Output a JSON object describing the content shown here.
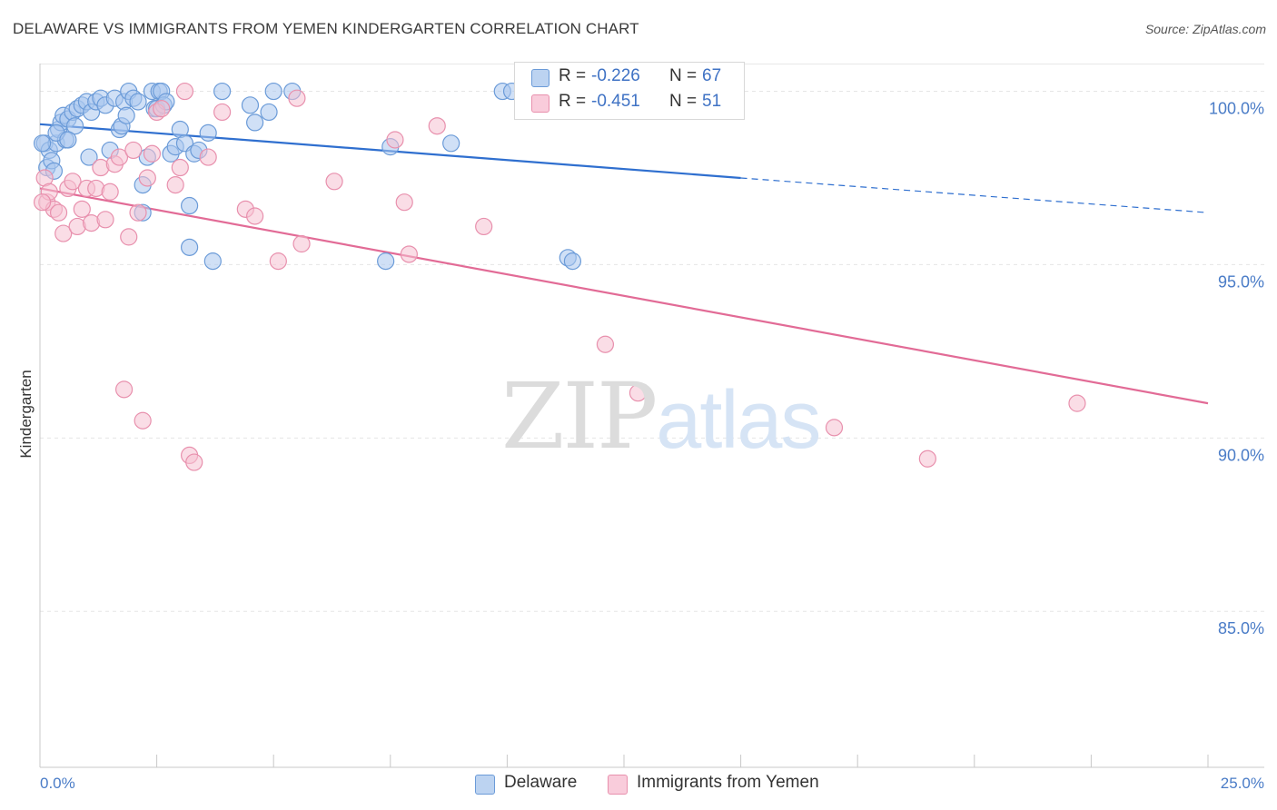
{
  "header": {
    "title": "DELAWARE VS IMMIGRANTS FROM YEMEN KINDERGARTEN CORRELATION CHART",
    "source": "Source: ZipAtlas.com"
  },
  "watermark": {
    "zip": "ZIP",
    "atlas": "atlas"
  },
  "legend_top": {
    "series1": {
      "r_label": "R =",
      "r_value": "-0.226",
      "n_label": "N =",
      "n_value": "67"
    },
    "series2": {
      "r_label": "R =",
      "r_value": "-0.451",
      "n_label": "N =",
      "n_value": "51"
    }
  },
  "legend_bottom": {
    "series1": "Delaware",
    "series2": "Immigrants from Yemen"
  },
  "colors": {
    "blue_fill": "#a9c7ee",
    "blue_stroke": "#6b9bd8",
    "blue_line": "#2f6fcf",
    "pink_fill": "#f6c1d1",
    "pink_stroke": "#e890ad",
    "pink_line": "#e26b96",
    "grid": "#e5e5e5",
    "axis_text": "#4a7cc7"
  },
  "chart_data": {
    "type": "scatter",
    "title": "DELAWARE VS IMMIGRANTS FROM YEMEN KINDERGARTEN CORRELATION CHART",
    "xlabel": "",
    "ylabel": "Kindergarten",
    "xlim": [
      0,
      25
    ],
    "ylim": [
      80.5,
      100.8
    ],
    "x_tick_labels": [
      "0.0%",
      "25.0%"
    ],
    "y_ticks": [
      100,
      95,
      90,
      85
    ],
    "y_tick_labels": [
      "100.0%",
      "95.0%",
      "90.0%",
      "85.0%"
    ],
    "series": [
      {
        "name": "Delaware",
        "color": "#6b9bd8",
        "r": -0.226,
        "n": 67,
        "trend": {
          "x0": 0,
          "y0": 99.05,
          "x1": 15.0,
          "y1": 97.5,
          "dash_to_x": 25.0,
          "dash_to_y": 96.5
        },
        "points": [
          [
            0.1,
            98.5
          ],
          [
            0.15,
            97.8
          ],
          [
            0.2,
            98.3
          ],
          [
            0.25,
            98.0
          ],
          [
            0.3,
            97.7
          ],
          [
            0.35,
            98.5
          ],
          [
            0.4,
            98.9
          ],
          [
            0.45,
            99.1
          ],
          [
            0.5,
            99.3
          ],
          [
            0.55,
            98.6
          ],
          [
            0.6,
            99.2
          ],
          [
            0.7,
            99.4
          ],
          [
            0.75,
            99.0
          ],
          [
            0.8,
            99.5
          ],
          [
            0.9,
            99.6
          ],
          [
            1.0,
            99.7
          ],
          [
            1.05,
            98.1
          ],
          [
            1.1,
            99.4
          ],
          [
            1.2,
            99.7
          ],
          [
            1.3,
            99.8
          ],
          [
            1.4,
            99.6
          ],
          [
            1.5,
            98.3
          ],
          [
            1.6,
            99.8
          ],
          [
            1.7,
            98.9
          ],
          [
            1.8,
            99.7
          ],
          [
            1.75,
            99.0
          ],
          [
            1.85,
            99.3
          ],
          [
            1.9,
            100.0
          ],
          [
            2.0,
            99.8
          ],
          [
            2.1,
            99.7
          ],
          [
            2.2,
            97.3
          ],
          [
            2.3,
            98.1
          ],
          [
            2.4,
            100.0
          ],
          [
            2.45,
            99.5
          ],
          [
            2.5,
            99.5
          ],
          [
            2.55,
            100.0
          ],
          [
            2.6,
            100.0
          ],
          [
            2.65,
            99.6
          ],
          [
            2.7,
            99.7
          ],
          [
            2.8,
            98.2
          ],
          [
            2.9,
            98.4
          ],
          [
            3.0,
            98.9
          ],
          [
            3.1,
            98.5
          ],
          [
            3.2,
            96.7
          ],
          [
            3.3,
            98.2
          ],
          [
            3.4,
            98.3
          ],
          [
            3.6,
            98.8
          ],
          [
            3.9,
            100.0
          ],
          [
            4.5,
            99.6
          ],
          [
            4.6,
            99.1
          ],
          [
            4.9,
            99.4
          ],
          [
            5.0,
            100.0
          ],
          [
            5.4,
            100.0
          ],
          [
            7.4,
            95.1
          ],
          [
            7.5,
            98.4
          ],
          [
            8.8,
            98.5
          ],
          [
            9.9,
            100.0
          ],
          [
            10.1,
            100.0
          ],
          [
            10.8,
            99.7
          ],
          [
            11.3,
            95.2
          ],
          [
            11.4,
            95.1
          ],
          [
            3.2,
            95.5
          ],
          [
            3.7,
            95.1
          ],
          [
            2.2,
            96.5
          ],
          [
            0.05,
            98.5
          ],
          [
            0.35,
            98.8
          ],
          [
            0.6,
            98.6
          ]
        ]
      },
      {
        "name": "Immigrants from Yemen",
        "color": "#e890ad",
        "r": -0.451,
        "n": 51,
        "trend": {
          "x0": 0,
          "y0": 97.2,
          "x1": 25.0,
          "y1": 91.0
        },
        "points": [
          [
            0.1,
            97.5
          ],
          [
            0.15,
            96.8
          ],
          [
            0.2,
            97.1
          ],
          [
            0.3,
            96.6
          ],
          [
            0.4,
            96.5
          ],
          [
            0.5,
            95.9
          ],
          [
            0.6,
            97.2
          ],
          [
            0.7,
            97.4
          ],
          [
            0.8,
            96.1
          ],
          [
            0.9,
            96.6
          ],
          [
            1.0,
            97.2
          ],
          [
            1.1,
            96.2
          ],
          [
            1.2,
            97.2
          ],
          [
            1.3,
            97.8
          ],
          [
            1.4,
            96.3
          ],
          [
            1.5,
            97.1
          ],
          [
            1.6,
            97.9
          ],
          [
            1.7,
            98.1
          ],
          [
            1.8,
            91.4
          ],
          [
            1.9,
            95.8
          ],
          [
            2.0,
            98.3
          ],
          [
            2.1,
            96.5
          ],
          [
            2.2,
            90.5
          ],
          [
            2.3,
            97.5
          ],
          [
            2.4,
            98.2
          ],
          [
            2.5,
            99.4
          ],
          [
            2.6,
            99.5
          ],
          [
            2.9,
            97.3
          ],
          [
            3.0,
            97.8
          ],
          [
            3.1,
            100.0
          ],
          [
            3.2,
            89.5
          ],
          [
            3.3,
            89.3
          ],
          [
            3.6,
            98.1
          ],
          [
            3.9,
            99.4
          ],
          [
            4.4,
            96.6
          ],
          [
            4.6,
            96.4
          ],
          [
            5.1,
            95.1
          ],
          [
            5.5,
            99.8
          ],
          [
            5.6,
            95.6
          ],
          [
            6.3,
            97.4
          ],
          [
            7.6,
            98.6
          ],
          [
            7.8,
            96.8
          ],
          [
            7.9,
            95.3
          ],
          [
            8.5,
            99.0
          ],
          [
            9.5,
            96.1
          ],
          [
            12.1,
            92.7
          ],
          [
            12.8,
            91.3
          ],
          [
            17.0,
            90.3
          ],
          [
            19.0,
            89.4
          ],
          [
            22.2,
            91.0
          ],
          [
            0.05,
            96.8
          ]
        ]
      }
    ]
  }
}
